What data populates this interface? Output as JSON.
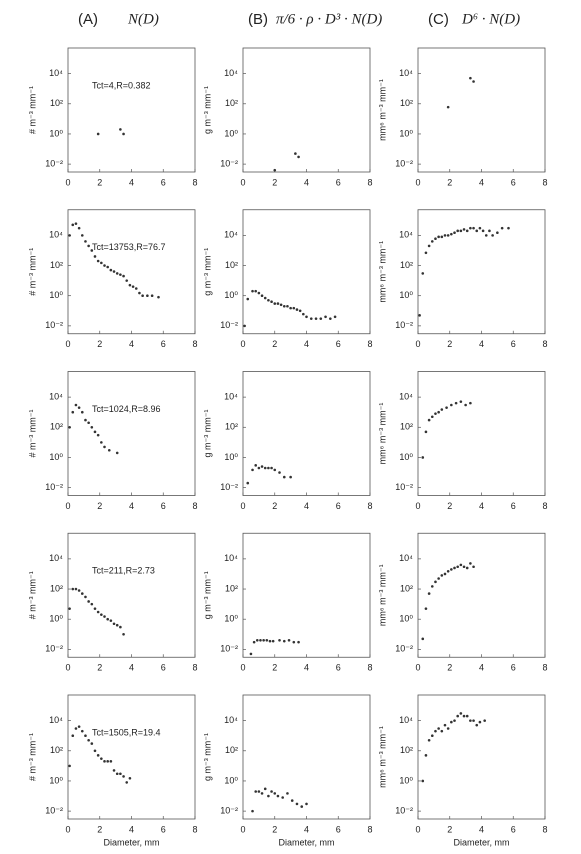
{
  "columns": [
    {
      "letter": "(A)",
      "formula": "N(D)"
    },
    {
      "letter": "(B)",
      "formula": "π/6 · ρ · D³ · N(D)"
    },
    {
      "letter": "(C)",
      "formula": "D⁶ · N(D)"
    }
  ],
  "chart_data": [
    {
      "type": "scatter",
      "annotation": "Tct=4,R=0.382",
      "ylabel": "# m⁻³ mm⁻¹",
      "color": "#333333",
      "log_y": true,
      "x": [
        1.9,
        3.3,
        3.5
      ],
      "values": [
        1,
        2,
        1
      ],
      "xlim": [
        0,
        8
      ],
      "xticks": [
        0,
        2,
        4,
        6,
        8
      ],
      "ylim": [
        0.003,
        500000
      ],
      "yticks": [
        {
          "value": 0.01,
          "label": "10⁻²"
        },
        {
          "value": 1,
          "label": "10⁰"
        },
        {
          "value": 100,
          "label": "10²"
        },
        {
          "value": 10000,
          "label": "10⁴"
        }
      ]
    },
    {
      "type": "scatter",
      "ylabel": "g m⁻³ mm⁻¹",
      "color": "#333333",
      "log_y": true,
      "x": [
        2.0,
        3.3,
        3.5
      ],
      "values": [
        0.004,
        0.05,
        0.03
      ],
      "xlim": [
        0,
        8
      ],
      "xticks": [
        0,
        2,
        4,
        6,
        8
      ],
      "ylim": [
        0.003,
        500000
      ],
      "yticks": [
        {
          "value": 0.01,
          "label": "10⁻²"
        },
        {
          "value": 1,
          "label": "10⁰"
        },
        {
          "value": 100,
          "label": "10²"
        },
        {
          "value": 10000,
          "label": "10⁴"
        }
      ]
    },
    {
      "type": "scatter",
      "ylabel": "mm⁶ m⁻³ mm⁻¹",
      "color": "#333333",
      "log_y": true,
      "x": [
        1.9,
        3.3,
        3.5
      ],
      "values": [
        60,
        5000,
        3000
      ],
      "xlim": [
        0,
        8
      ],
      "xticks": [
        0,
        2,
        4,
        6,
        8
      ],
      "ylim": [
        0.003,
        500000
      ],
      "yticks": [
        {
          "value": 0.01,
          "label": "10⁻²"
        },
        {
          "value": 1,
          "label": "10⁰"
        },
        {
          "value": 100,
          "label": "10²"
        },
        {
          "value": 10000,
          "label": "10⁴"
        }
      ]
    },
    {
      "type": "scatter",
      "annotation": "Tct=13753,R=76.7",
      "ylabel": "# m⁻³ mm⁻¹",
      "color": "#333333",
      "log_y": true,
      "x": [
        0.1,
        0.3,
        0.5,
        0.7,
        0.9,
        1.1,
        1.3,
        1.5,
        1.7,
        1.9,
        2.1,
        2.3,
        2.5,
        2.7,
        2.9,
        3.1,
        3.3,
        3.5,
        3.7,
        3.9,
        4.1,
        4.3,
        4.5,
        4.7,
        5.0,
        5.3,
        5.7
      ],
      "values": [
        10000,
        50000,
        60000,
        30000,
        10000,
        4000,
        2000,
        1000,
        400,
        200,
        150,
        100,
        80,
        50,
        40,
        30,
        25,
        20,
        10,
        5,
        4,
        3,
        1.5,
        1,
        1,
        1,
        0.8
      ],
      "xlim": [
        0,
        8
      ],
      "xticks": [
        0,
        2,
        4,
        6,
        8
      ],
      "ylim": [
        0.003,
        500000
      ],
      "yticks": [
        {
          "value": 0.01,
          "label": "10⁻²"
        },
        {
          "value": 1,
          "label": "10⁰"
        },
        {
          "value": 100,
          "label": "10²"
        },
        {
          "value": 10000,
          "label": "10⁴"
        }
      ]
    },
    {
      "type": "scatter",
      "ylabel": "g m⁻³ mm⁻¹",
      "color": "#333333",
      "log_y": true,
      "x": [
        0.1,
        0.3,
        0.6,
        0.8,
        1.0,
        1.2,
        1.4,
        1.6,
        1.8,
        2.0,
        2.2,
        2.4,
        2.6,
        2.8,
        3.0,
        3.2,
        3.4,
        3.6,
        3.8,
        4.0,
        4.3,
        4.6,
        4.9,
        5.2,
        5.5,
        5.8
      ],
      "values": [
        0.01,
        0.6,
        2,
        2,
        1.5,
        1,
        0.7,
        0.5,
        0.4,
        0.3,
        0.3,
        0.25,
        0.2,
        0.2,
        0.15,
        0.15,
        0.12,
        0.1,
        0.06,
        0.04,
        0.03,
        0.03,
        0.03,
        0.04,
        0.03,
        0.04
      ],
      "xlim": [
        0,
        8
      ],
      "xticks": [
        0,
        2,
        4,
        6,
        8
      ],
      "ylim": [
        0.003,
        500000
      ],
      "yticks": [
        {
          "value": 0.01,
          "label": "10⁻²"
        },
        {
          "value": 1,
          "label": "10⁰"
        },
        {
          "value": 100,
          "label": "10²"
        },
        {
          "value": 10000,
          "label": "10⁴"
        }
      ]
    },
    {
      "type": "scatter",
      "ylabel": "mm⁶ m⁻³ mm⁻¹",
      "color": "#333333",
      "log_y": true,
      "x": [
        0.1,
        0.3,
        0.5,
        0.7,
        0.9,
        1.1,
        1.3,
        1.5,
        1.7,
        1.9,
        2.1,
        2.3,
        2.5,
        2.7,
        2.9,
        3.1,
        3.3,
        3.5,
        3.7,
        3.9,
        4.1,
        4.3,
        4.5,
        4.7,
        5.0,
        5.3,
        5.7
      ],
      "values": [
        0.05,
        30,
        700,
        2000,
        4000,
        6000,
        8000,
        8000,
        10000,
        10000,
        12000,
        15000,
        20000,
        20000,
        25000,
        20000,
        30000,
        30000,
        20000,
        30000,
        20000,
        10000,
        20000,
        10000,
        15000,
        30000,
        30000
      ],
      "xlim": [
        0,
        8
      ],
      "xticks": [
        0,
        2,
        4,
        6,
        8
      ],
      "ylim": [
        0.003,
        500000
      ],
      "yticks": [
        {
          "value": 0.01,
          "label": "10⁻²"
        },
        {
          "value": 1,
          "label": "10⁰"
        },
        {
          "value": 100,
          "label": "10²"
        },
        {
          "value": 10000,
          "label": "10⁴"
        }
      ]
    },
    {
      "type": "scatter",
      "annotation": "Tct=1024,R=8.96",
      "ylabel": "# m⁻³ mm⁻¹",
      "color": "#333333",
      "log_y": true,
      "x": [
        0.1,
        0.3,
        0.5,
        0.7,
        0.9,
        1.1,
        1.3,
        1.5,
        1.7,
        1.9,
        2.1,
        2.3,
        2.6,
        3.1
      ],
      "values": [
        100,
        1000,
        3000,
        2000,
        1000,
        300,
        200,
        100,
        50,
        30,
        10,
        5,
        3,
        2
      ],
      "xlim": [
        0,
        8
      ],
      "xticks": [
        0,
        2,
        4,
        6,
        8
      ],
      "ylim": [
        0.003,
        500000
      ],
      "yticks": [
        {
          "value": 0.01,
          "label": "10⁻²"
        },
        {
          "value": 1,
          "label": "10⁰"
        },
        {
          "value": 100,
          "label": "10²"
        },
        {
          "value": 10000,
          "label": "10⁴"
        }
      ]
    },
    {
      "type": "scatter",
      "ylabel": "g m⁻³ mm⁻¹",
      "color": "#333333",
      "log_y": true,
      "x": [
        0.3,
        0.6,
        0.8,
        1.0,
        1.2,
        1.4,
        1.6,
        1.8,
        2.0,
        2.3,
        2.6,
        3.0
      ],
      "values": [
        0.02,
        0.15,
        0.3,
        0.2,
        0.25,
        0.2,
        0.2,
        0.2,
        0.15,
        0.1,
        0.05,
        0.05
      ],
      "xlim": [
        0,
        8
      ],
      "xticks": [
        0,
        2,
        4,
        6,
        8
      ],
      "ylim": [
        0.003,
        500000
      ],
      "yticks": [
        {
          "value": 0.01,
          "label": "10⁻²"
        },
        {
          "value": 1,
          "label": "10⁰"
        },
        {
          "value": 100,
          "label": "10²"
        },
        {
          "value": 10000,
          "label": "10⁴"
        }
      ]
    },
    {
      "type": "scatter",
      "ylabel": "mm⁶ m⁻³ mm⁻¹",
      "color": "#333333",
      "log_y": true,
      "x": [
        0.3,
        0.5,
        0.7,
        0.9,
        1.1,
        1.3,
        1.5,
        1.8,
        2.1,
        2.4,
        2.7,
        3.0,
        3.3
      ],
      "values": [
        1,
        50,
        300,
        500,
        800,
        1000,
        1500,
        2000,
        3000,
        4000,
        5000,
        3000,
        4000
      ],
      "xlim": [
        0,
        8
      ],
      "xticks": [
        0,
        2,
        4,
        6,
        8
      ],
      "ylim": [
        0.003,
        500000
      ],
      "yticks": [
        {
          "value": 0.01,
          "label": "10⁻²"
        },
        {
          "value": 1,
          "label": "10⁰"
        },
        {
          "value": 100,
          "label": "10²"
        },
        {
          "value": 10000,
          "label": "10⁴"
        }
      ]
    },
    {
      "type": "scatter",
      "annotation": "Tct=211,R=2.73",
      "ylabel": "# m⁻³ mm⁻¹",
      "color": "#333333",
      "log_y": true,
      "x": [
        0.1,
        0.3,
        0.5,
        0.7,
        0.9,
        1.1,
        1.3,
        1.5,
        1.7,
        1.9,
        2.1,
        2.3,
        2.5,
        2.7,
        2.9,
        3.1,
        3.3,
        3.5
      ],
      "values": [
        5,
        100,
        100,
        80,
        50,
        30,
        15,
        10,
        5,
        3,
        2,
        1.5,
        1,
        0.8,
        0.5,
        0.4,
        0.3,
        0.1
      ],
      "xlim": [
        0,
        8
      ],
      "xticks": [
        0,
        2,
        4,
        6,
        8
      ],
      "ylim": [
        0.003,
        500000
      ],
      "yticks": [
        {
          "value": 0.01,
          "label": "10⁻²"
        },
        {
          "value": 1,
          "label": "10⁰"
        },
        {
          "value": 100,
          "label": "10²"
        },
        {
          "value": 10000,
          "label": "10⁴"
        }
      ]
    },
    {
      "type": "scatter",
      "ylabel": "g m⁻³ mm⁻¹",
      "color": "#333333",
      "log_y": true,
      "x": [
        0.5,
        0.7,
        0.9,
        1.1,
        1.3,
        1.5,
        1.7,
        1.9,
        2.3,
        2.6,
        2.9,
        3.2,
        3.5
      ],
      "values": [
        0.005,
        0.03,
        0.04,
        0.04,
        0.04,
        0.04,
        0.035,
        0.035,
        0.04,
        0.035,
        0.04,
        0.03,
        0.03
      ],
      "xlim": [
        0,
        8
      ],
      "xticks": [
        0,
        2,
        4,
        6,
        8
      ],
      "ylim": [
        0.003,
        500000
      ],
      "yticks": [
        {
          "value": 0.01,
          "label": "10⁻²"
        },
        {
          "value": 1,
          "label": "10⁰"
        },
        {
          "value": 100,
          "label": "10²"
        },
        {
          "value": 10000,
          "label": "10⁴"
        }
      ]
    },
    {
      "type": "scatter",
      "ylabel": "mm⁶ m⁻³ mm⁻¹",
      "color": "#333333",
      "log_y": true,
      "x": [
        0.3,
        0.5,
        0.7,
        0.9,
        1.1,
        1.3,
        1.5,
        1.7,
        1.9,
        2.1,
        2.3,
        2.5,
        2.7,
        2.9,
        3.1,
        3.3,
        3.5
      ],
      "values": [
        0.05,
        5,
        50,
        150,
        300,
        500,
        800,
        1000,
        1500,
        2000,
        2500,
        3000,
        4000,
        3000,
        2500,
        5000,
        3000
      ],
      "xlim": [
        0,
        8
      ],
      "xticks": [
        0,
        2,
        4,
        6,
        8
      ],
      "ylim": [
        0.003,
        500000
      ],
      "yticks": [
        {
          "value": 0.01,
          "label": "10⁻²"
        },
        {
          "value": 1,
          "label": "10⁰"
        },
        {
          "value": 100,
          "label": "10²"
        },
        {
          "value": 10000,
          "label": "10⁴"
        }
      ]
    },
    {
      "type": "scatter",
      "annotation": "Tct=1505,R=19.4",
      "ylabel": "# m⁻³ mm⁻¹",
      "xlabel": "Diameter, mm",
      "color": "#333333",
      "log_y": true,
      "x": [
        0.1,
        0.3,
        0.5,
        0.7,
        0.9,
        1.1,
        1.3,
        1.5,
        1.7,
        1.9,
        2.1,
        2.3,
        2.5,
        2.7,
        2.9,
        3.1,
        3.3,
        3.5,
        3.7,
        3.9
      ],
      "values": [
        10,
        1000,
        3000,
        4000,
        2000,
        1000,
        500,
        300,
        100,
        50,
        30,
        20,
        20,
        20,
        5,
        3,
        3,
        2,
        0.8,
        1.5
      ],
      "xlim": [
        0,
        8
      ],
      "xticks": [
        0,
        2,
        4,
        6,
        8
      ],
      "ylim": [
        0.003,
        500000
      ],
      "yticks": [
        {
          "value": 0.01,
          "label": "10⁻²"
        },
        {
          "value": 1,
          "label": "10⁰"
        },
        {
          "value": 100,
          "label": "10²"
        },
        {
          "value": 10000,
          "label": "10⁴"
        }
      ]
    },
    {
      "type": "scatter",
      "ylabel": "g m⁻³ mm⁻¹",
      "xlabel": "Diameter, mm",
      "color": "#333333",
      "log_y": true,
      "x": [
        0.6,
        0.8,
        1.0,
        1.2,
        1.4,
        1.6,
        1.8,
        2.0,
        2.2,
        2.5,
        2.8,
        3.1,
        3.4,
        3.7,
        4.0
      ],
      "values": [
        0.01,
        0.2,
        0.2,
        0.15,
        0.3,
        0.1,
        0.2,
        0.15,
        0.1,
        0.08,
        0.15,
        0.05,
        0.03,
        0.02,
        0.03
      ],
      "xlim": [
        0,
        8
      ],
      "xticks": [
        0,
        2,
        4,
        6,
        8
      ],
      "ylim": [
        0.003,
        500000
      ],
      "yticks": [
        {
          "value": 0.01,
          "label": "10⁻²"
        },
        {
          "value": 1,
          "label": "10⁰"
        },
        {
          "value": 100,
          "label": "10²"
        },
        {
          "value": 10000,
          "label": "10⁴"
        }
      ]
    },
    {
      "type": "scatter",
      "ylabel": "mm⁶ m⁻³ mm⁻¹",
      "xlabel": "Diameter, mm",
      "color": "#333333",
      "log_y": true,
      "x": [
        0.3,
        0.5,
        0.7,
        0.9,
        1.1,
        1.3,
        1.5,
        1.7,
        1.9,
        2.1,
        2.3,
        2.5,
        2.7,
        2.9,
        3.1,
        3.3,
        3.5,
        3.7,
        3.9,
        4.2
      ],
      "values": [
        1,
        50,
        500,
        1000,
        2000,
        3000,
        2000,
        5000,
        3000,
        8000,
        10000,
        20000,
        30000,
        20000,
        20000,
        10000,
        10000,
        5000,
        8000,
        10000
      ],
      "xlim": [
        0,
        8
      ],
      "xticks": [
        0,
        2,
        4,
        6,
        8
      ],
      "ylim": [
        0.003,
        500000
      ],
      "yticks": [
        {
          "value": 0.01,
          "label": "10⁻²"
        },
        {
          "value": 1,
          "label": "10⁰"
        },
        {
          "value": 100,
          "label": "10²"
        },
        {
          "value": 10000,
          "label": "10⁴"
        }
      ]
    }
  ]
}
